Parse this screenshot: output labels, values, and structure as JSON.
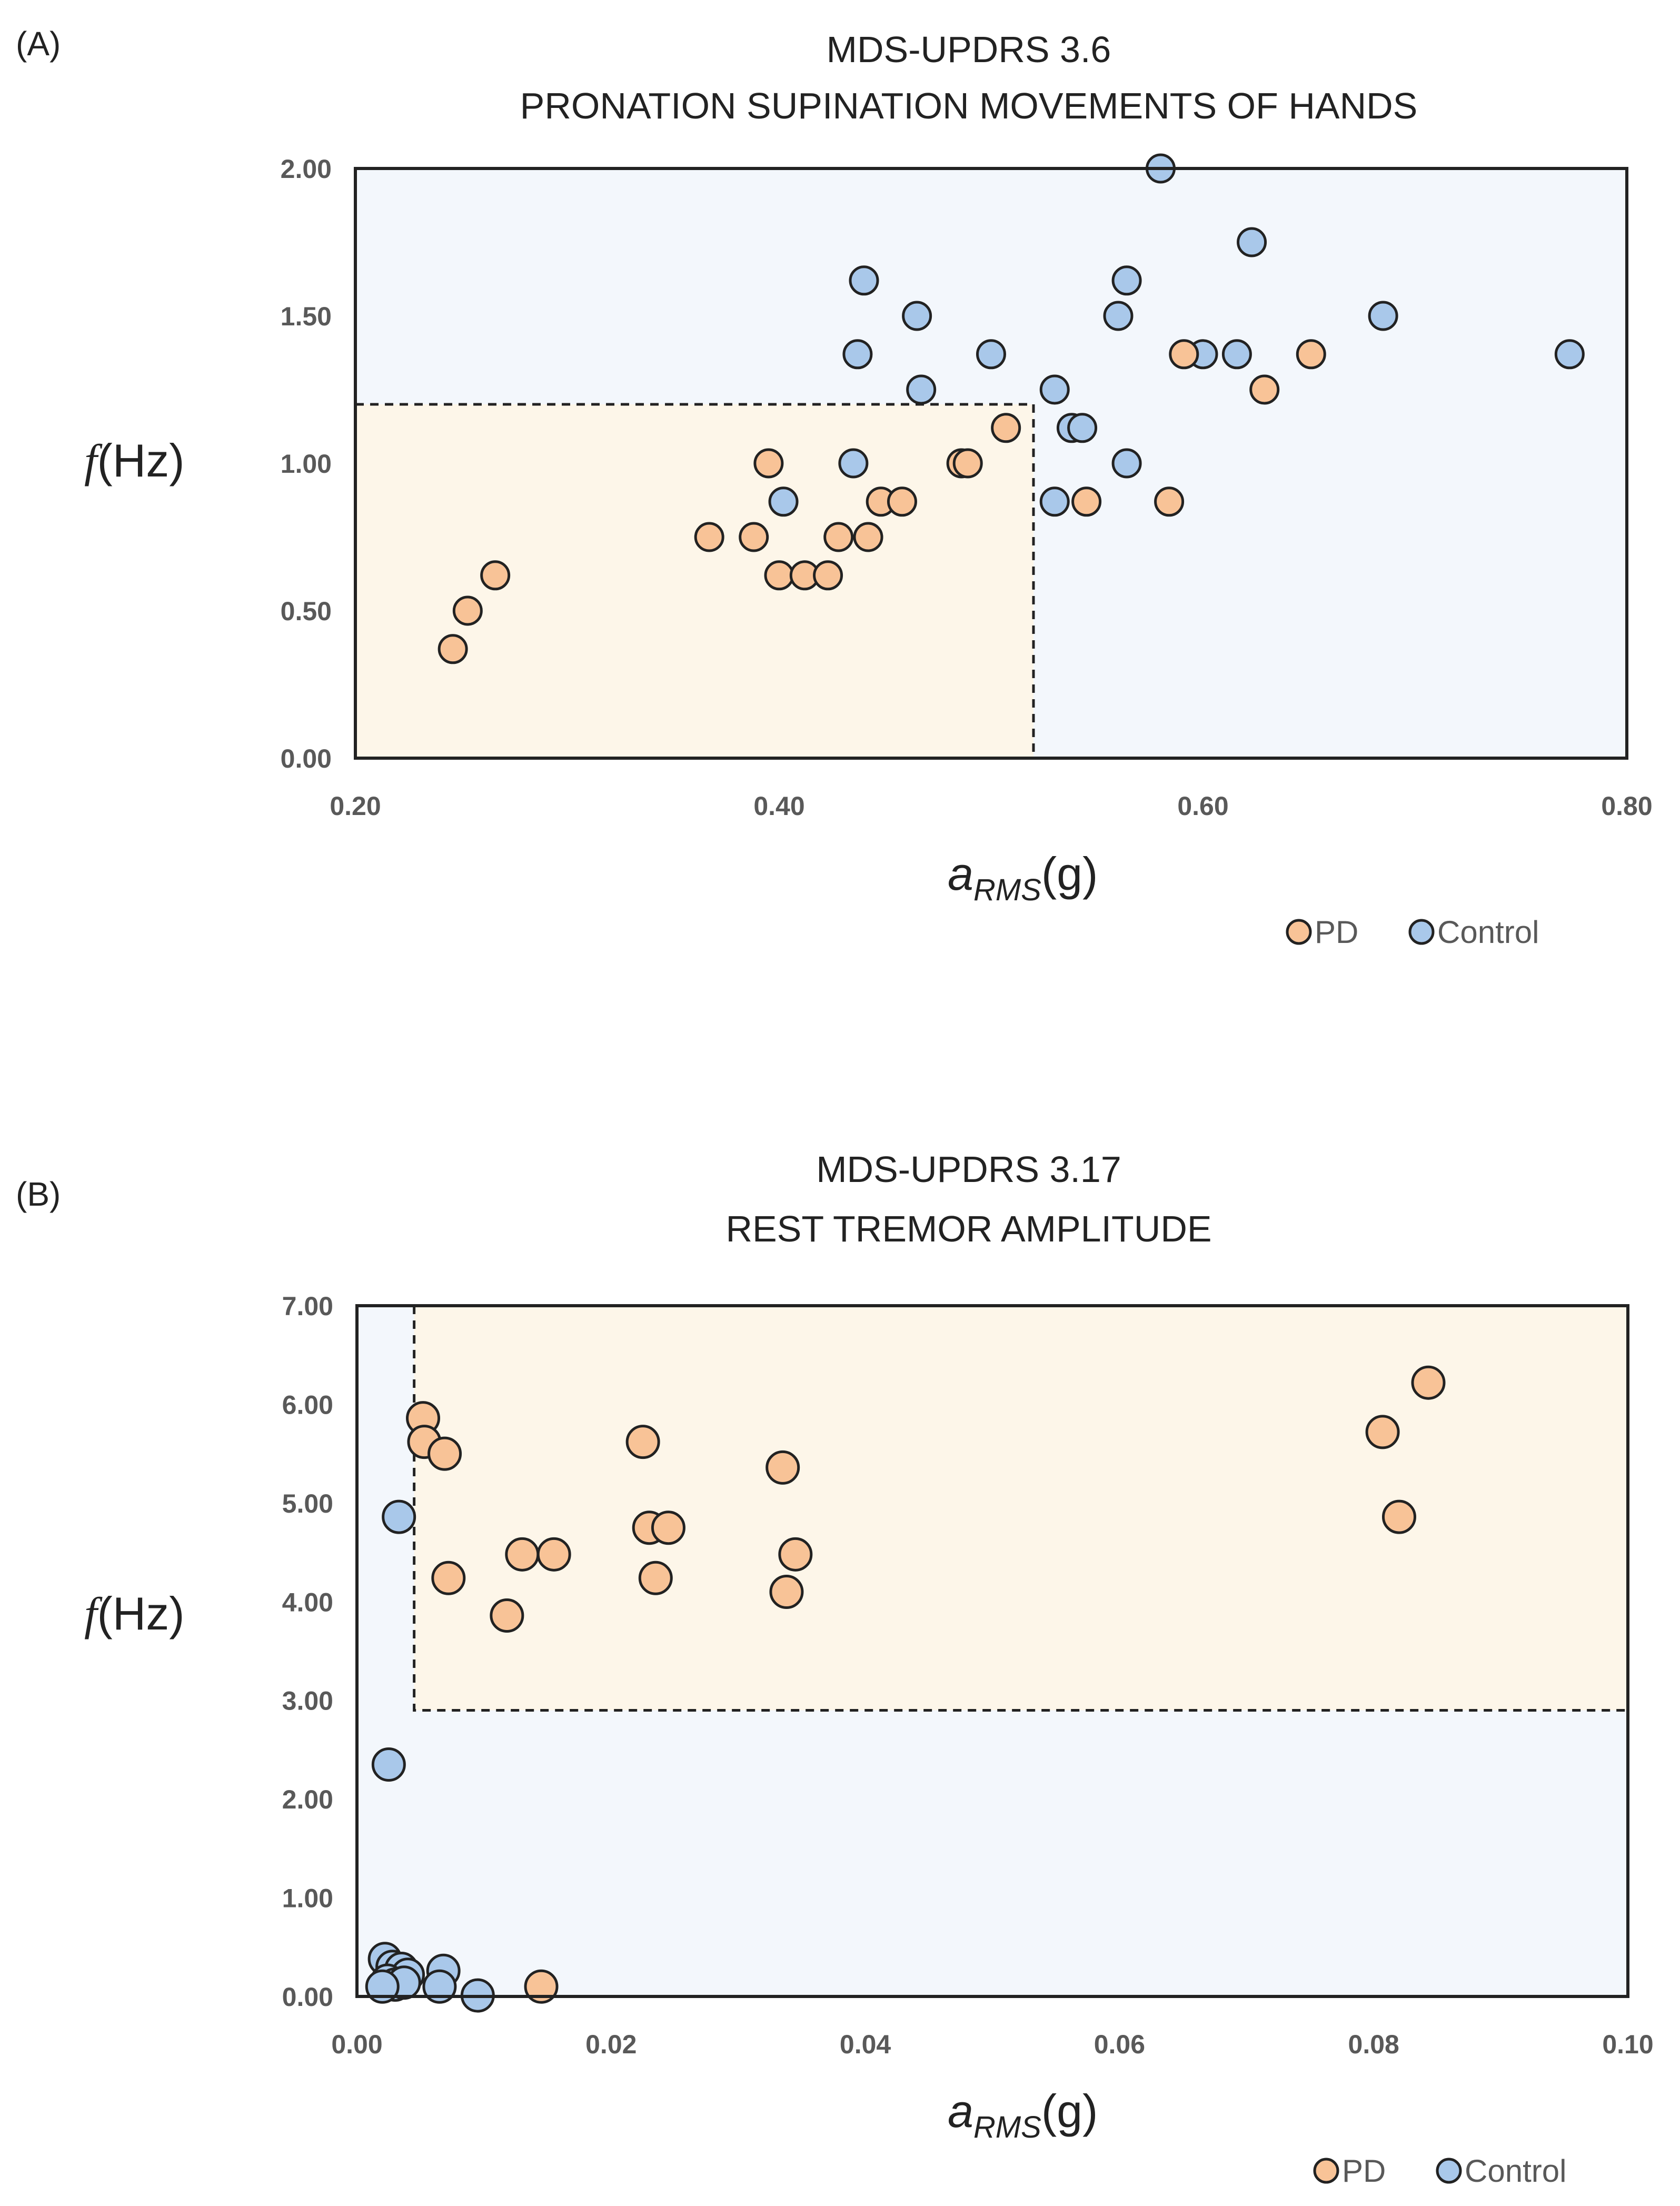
{
  "chart_data": [
    {
      "panel_label": "(A)",
      "type": "scatter",
      "title_line1": "MDS-UPDRS 3.6",
      "title_line2": "PRONATION SUPINATION MOVEMENTS OF HANDS",
      "ylabel_symbol": "f",
      "ylabel_unit": "(Hz)",
      "xlabel_symbol": "a",
      "xlabel_sub": "RMS",
      "xlabel_unit": "(g)",
      "xlim": [
        0.2,
        0.8
      ],
      "ylim": [
        0.0,
        2.0
      ],
      "xticks": [
        "0.20",
        "0.40",
        "0.60",
        "0.80"
      ],
      "xtick_values": [
        0.2,
        0.4,
        0.6,
        0.8
      ],
      "yticks": [
        "0.00",
        "0.50",
        "1.00",
        "1.50",
        "2.00"
      ],
      "ytick_values": [
        0,
        0.5,
        1,
        1.5,
        2
      ],
      "pd_region": {
        "x": [
          0.2,
          0.52
        ],
        "y": [
          0.0,
          1.2
        ]
      },
      "series": [
        {
          "name": "Control",
          "color": "#a9c8ea",
          "points": [
            [
              0.58,
              2.0
            ],
            [
              0.623,
              1.75
            ],
            [
              0.44,
              1.62
            ],
            [
              0.564,
              1.62
            ],
            [
              0.465,
              1.5
            ],
            [
              0.56,
              1.5
            ],
            [
              0.685,
              1.5
            ],
            [
              0.437,
              1.37
            ],
            [
              0.5,
              1.37
            ],
            [
              0.6,
              1.37
            ],
            [
              0.616,
              1.37
            ],
            [
              0.773,
              1.37
            ],
            [
              0.467,
              1.25
            ],
            [
              0.53,
              1.25
            ],
            [
              0.538,
              1.12
            ],
            [
              0.543,
              1.12
            ],
            [
              0.435,
              1.0
            ],
            [
              0.564,
              1.0
            ],
            [
              0.402,
              0.87
            ],
            [
              0.53,
              0.87
            ]
          ]
        },
        {
          "name": "PD",
          "color": "#f8c397",
          "points": [
            [
              0.591,
              1.37
            ],
            [
              0.651,
              1.37
            ],
            [
              0.629,
              1.25
            ],
            [
              0.507,
              1.12
            ],
            [
              0.486,
              1.0
            ],
            [
              0.489,
              1.0
            ],
            [
              0.395,
              1.0
            ],
            [
              0.545,
              0.87
            ],
            [
              0.584,
              0.87
            ],
            [
              0.448,
              0.87
            ],
            [
              0.458,
              0.87
            ],
            [
              0.367,
              0.75
            ],
            [
              0.388,
              0.75
            ],
            [
              0.428,
              0.75
            ],
            [
              0.442,
              0.75
            ],
            [
              0.266,
              0.62
            ],
            [
              0.4,
              0.62
            ],
            [
              0.412,
              0.62
            ],
            [
              0.423,
              0.62
            ],
            [
              0.253,
              0.5
            ],
            [
              0.246,
              0.37
            ]
          ]
        }
      ],
      "legend": [
        "PD",
        "Control"
      ]
    },
    {
      "panel_label": "(B)",
      "type": "scatter",
      "title_line1": "MDS-UPDRS 3.17",
      "title_line2": "REST TREMOR AMPLITUDE",
      "ylabel_symbol": "f",
      "ylabel_unit": "(Hz)",
      "xlabel_symbol": "a",
      "xlabel_sub": "RMS",
      "xlabel_unit": "(g)",
      "xlim": [
        0.0,
        0.1
      ],
      "ylim": [
        0.0,
        7.0
      ],
      "xticks": [
        "0.00",
        "0.02",
        "0.04",
        "0.06",
        "0.08",
        "0.10"
      ],
      "xtick_values": [
        0,
        0.02,
        0.04,
        0.06,
        0.08,
        0.1
      ],
      "yticks": [
        "0.00",
        "1.00",
        "2.00",
        "3.00",
        "4.00",
        "5.00",
        "6.00",
        "7.00"
      ],
      "ytick_values": [
        0,
        1,
        2,
        3,
        4,
        5,
        6,
        7
      ],
      "pd_region": {
        "x": [
          0.0045,
          0.1
        ],
        "y": [
          2.9,
          7.0
        ]
      },
      "series": [
        {
          "name": "Control",
          "color": "#a9c8ea",
          "points": [
            [
              0.0033,
              4.86
            ],
            [
              0.0025,
              2.35
            ],
            [
              0.0022,
              0.38
            ],
            [
              0.0028,
              0.3
            ],
            [
              0.0035,
              0.28
            ],
            [
              0.004,
              0.22
            ],
            [
              0.0068,
              0.26
            ],
            [
              0.0024,
              0.16
            ],
            [
              0.003,
              0.12
            ],
            [
              0.0037,
              0.14
            ],
            [
              0.0065,
              0.1
            ],
            [
              0.002,
              0.1
            ],
            [
              0.0095,
              0.01
            ]
          ]
        },
        {
          "name": "PD",
          "color": "#f8c397",
          "points": [
            [
              0.0052,
              5.86
            ],
            [
              0.0053,
              5.62
            ],
            [
              0.0069,
              5.5
            ],
            [
              0.0072,
              4.24
            ],
            [
              0.0118,
              3.86
            ],
            [
              0.013,
              4.48
            ],
            [
              0.0155,
              4.48
            ],
            [
              0.0225,
              5.62
            ],
            [
              0.023,
              4.75
            ],
            [
              0.0245,
              4.75
            ],
            [
              0.0235,
              4.24
            ],
            [
              0.0335,
              5.36
            ],
            [
              0.0345,
              4.48
            ],
            [
              0.0338,
              4.1
            ],
            [
              0.0807,
              5.72
            ],
            [
              0.082,
              4.86
            ],
            [
              0.0843,
              6.22
            ],
            [
              0.0145,
              0.1
            ]
          ]
        }
      ],
      "legend": [
        "PD",
        "Control"
      ]
    }
  ]
}
